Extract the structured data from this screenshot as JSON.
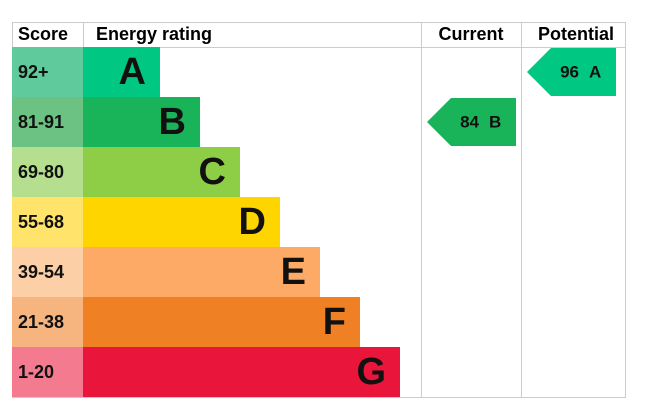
{
  "headers": {
    "score": "Score",
    "rating": "Energy rating",
    "current": "Current",
    "potential": "Potential"
  },
  "bands": [
    {
      "score": "92+",
      "letter": "A",
      "color": "#00c781",
      "score_color": "#5fcb9d"
    },
    {
      "score": "81-91",
      "letter": "B",
      "color": "#19b459",
      "score_color": "#6cc282"
    },
    {
      "score": "69-80",
      "letter": "C",
      "color": "#8dce46",
      "score_color": "#b5de8e"
    },
    {
      "score": "55-68",
      "letter": "D",
      "color": "#ffd500",
      "score_color": "#ffe36a"
    },
    {
      "score": "39-54",
      "letter": "E",
      "color": "#fcaa65",
      "score_color": "#fdcfa6"
    },
    {
      "score": "21-38",
      "letter": "F",
      "color": "#ef8023",
      "score_color": "#f6b47e"
    },
    {
      "score": "1-20",
      "letter": "G",
      "color": "#e9153b",
      "score_color": "#f47a90"
    }
  ],
  "current": {
    "value": 84,
    "band": "B"
  },
  "potential": {
    "value": 96,
    "band": "A"
  }
}
